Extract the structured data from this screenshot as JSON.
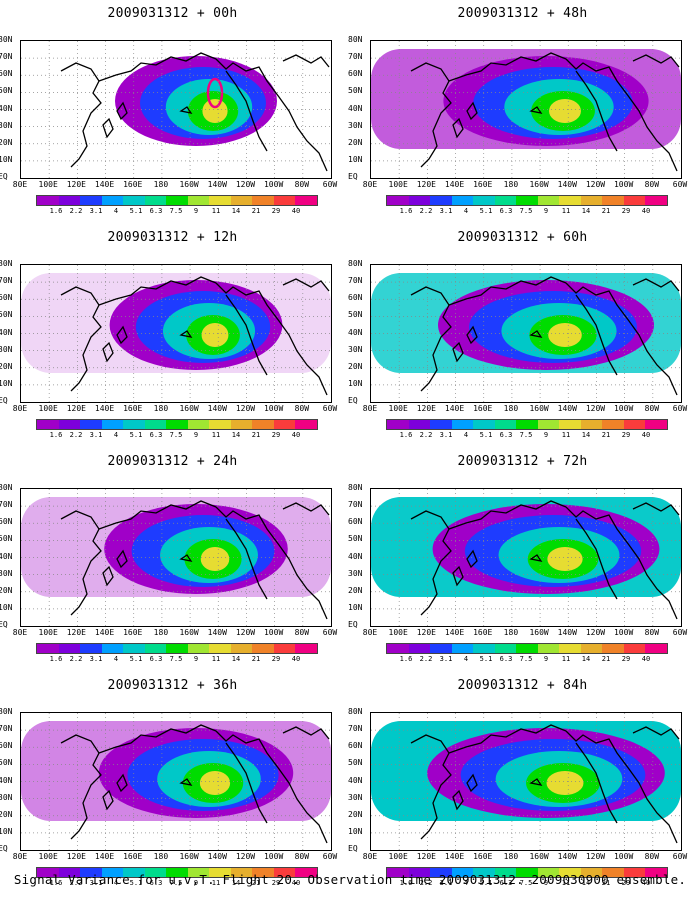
{
  "panels": [
    {
      "title": "2009031312 + 00h",
      "lead": "00h",
      "fill": "c1",
      "hot": 0.9
    },
    {
      "title": "2009031312 + 12h",
      "lead": "12h",
      "fill": "c2",
      "hot": 0.6
    },
    {
      "title": "2009031312 + 24h",
      "lead": "24h",
      "fill": "c3",
      "hot": 0.6
    },
    {
      "title": "2009031312 + 36h",
      "lead": "36h",
      "fill": "c4",
      "hot": 0.45
    },
    {
      "title": "2009031312 + 48h",
      "lead": "48h",
      "fill": "c5",
      "hot": 0.5
    },
    {
      "title": "2009031312 + 60h",
      "lead": "60h",
      "fill": "c6",
      "hot": 0.5
    },
    {
      "title": "2009031312 + 72h",
      "lead": "72h",
      "fill": "c7",
      "hot": 0.5
    },
    {
      "title": "2009031312 + 84h",
      "lead": "84h",
      "fill": "c8",
      "hot": 0.5
    }
  ],
  "lat_labels": [
    "80N",
    "70N",
    "60N",
    "50N",
    "40N",
    "30N",
    "20N",
    "10N",
    "EQ"
  ],
  "lon_labels": [
    "80E",
    "100E",
    "120E",
    "140E",
    "160E",
    "180",
    "160W",
    "140W",
    "120W",
    "100W",
    "80W",
    "60W"
  ],
  "colorbar": {
    "labels": [
      "1.6",
      "2.2",
      "3.1",
      "4",
      "5.1",
      "6.3",
      "7.5",
      "9",
      "11",
      "14",
      "21",
      "29",
      "40"
    ],
    "colors": [
      "#a000c8",
      "#7d00dc",
      "#1e3cff",
      "#00a0ff",
      "#00c8c8",
      "#00dc8c",
      "#00dc00",
      "#a0e632",
      "#e6dc32",
      "#e6af2d",
      "#f08228",
      "#fa3c3c",
      "#f00082"
    ]
  },
  "caption": "Signal Variance for u,v,T. Flight 20. Observation time 2009031312. 2009030900 ensemble."
}
